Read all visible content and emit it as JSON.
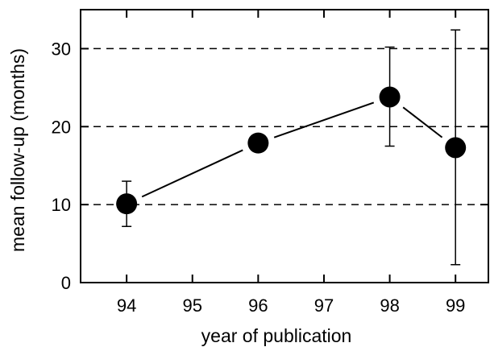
{
  "chart_data": {
    "type": "scatter",
    "title": "",
    "xlabel": "year of publication",
    "ylabel": "mean follow-up (months)",
    "xlim": [
      93.3,
      99.5
    ],
    "ylim": [
      0,
      35
    ],
    "x_ticks": [
      94,
      95,
      96,
      97,
      98,
      99
    ],
    "x_tick_labels": [
      "94",
      "95",
      "96",
      "97",
      "98",
      "99"
    ],
    "y_ticks": [
      0,
      10,
      20,
      30
    ],
    "y_tick_labels": [
      "0",
      "10",
      "20",
      "30"
    ],
    "grid": "horizontal dashed at 10, 20, 30",
    "series": [
      {
        "points": [
          {
            "x": 94,
            "y": 10.1,
            "err_low": 7.2,
            "err_high": 13.0
          },
          {
            "x": 96,
            "y": 17.9,
            "err_low": null,
            "err_high": null
          },
          {
            "x": 98,
            "y": 23.8,
            "err_low": 17.5,
            "err_high": 30.2
          },
          {
            "x": 99,
            "y": 17.3,
            "err_low": 2.3,
            "err_high": 32.4
          }
        ],
        "connected": true
      }
    ],
    "colors": {
      "marker": "#000000",
      "line": "#000000",
      "grid": "#000000"
    }
  }
}
